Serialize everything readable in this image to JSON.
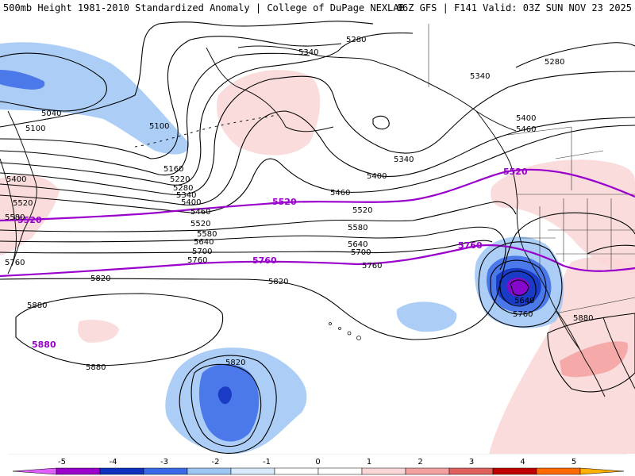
{
  "header": {
    "left_title": "500mb Height 1981-2010 Standardized Anomaly | College of DuPage NEXLAB",
    "right_title": "06Z GFS | F141 Valid: 03Z SUN NOV 23 2025"
  },
  "colors": {
    "contour": "#000000",
    "highlight_contour": "#9900cc",
    "border": "#333333",
    "coast": "#111111"
  },
  "colorbar": {
    "ticks": [
      "-5",
      "-4",
      "-3",
      "-2",
      "-1",
      "0",
      "1",
      "2",
      "3",
      "4",
      "5"
    ],
    "bins": [
      {
        "color": "#e060ff"
      },
      {
        "color": "#9900cc"
      },
      {
        "color": "#1030c0"
      },
      {
        "color": "#3a6ae8"
      },
      {
        "color": "#9ec6f5"
      },
      {
        "color": "#d7e9fb"
      },
      {
        "color": "#ffffff"
      },
      {
        "color": "#ffffff"
      },
      {
        "color": "#fad6d6"
      },
      {
        "color": "#f3a0a0"
      },
      {
        "color": "#e06060"
      },
      {
        "color": "#c00000"
      },
      {
        "color": "#ff6a00"
      },
      {
        "color": "#ffb000"
      }
    ]
  },
  "contours": [
    {
      "id": "5040",
      "label": "5040",
      "highlight": false
    },
    {
      "id": "5100",
      "label": "5100",
      "highlight": false
    },
    {
      "id": "5160",
      "label": "5160",
      "highlight": false
    },
    {
      "id": "5220",
      "label": "5220",
      "highlight": false
    },
    {
      "id": "5280",
      "label": "5280",
      "highlight": false
    },
    {
      "id": "5340",
      "label": "5340",
      "highlight": false
    },
    {
      "id": "5400",
      "label": "5400",
      "highlight": false
    },
    {
      "id": "5460",
      "label": "5460",
      "highlight": false
    },
    {
      "id": "5520",
      "label": "5520",
      "highlight": true
    },
    {
      "id": "5580",
      "label": "5580",
      "highlight": false
    },
    {
      "id": "5640",
      "label": "5640",
      "highlight": false
    },
    {
      "id": "5700",
      "label": "5700",
      "highlight": false
    },
    {
      "id": "5760",
      "label": "5760",
      "highlight": true
    },
    {
      "id": "5820",
      "label": "5820",
      "highlight": false
    },
    {
      "id": "5880",
      "label": "5880",
      "highlight": true
    }
  ],
  "anomaly_areas": [
    {
      "name": "aleutian-neg",
      "anomaly": -1
    },
    {
      "name": "aleutian-core",
      "anomaly": -2
    },
    {
      "name": "alaska-pos",
      "anomaly": 1
    },
    {
      "name": "california-low",
      "anomaly": -1
    },
    {
      "name": "california-low-core",
      "anomaly": -2
    },
    {
      "name": "california-low-inner",
      "anomaly": -3
    },
    {
      "name": "california-low-center",
      "anomaly": -4
    },
    {
      "name": "subtropical-neg",
      "anomaly": -1
    },
    {
      "name": "subtropical-core",
      "anomaly": -2
    },
    {
      "name": "subtropical-center",
      "anomaly": -3
    },
    {
      "name": "mexico-pos",
      "anomaly": 1
    },
    {
      "name": "mexico-pos-core",
      "anomaly": 2
    },
    {
      "name": "canada-pos",
      "anomaly": 1
    },
    {
      "name": "hawaii-pos",
      "anomaly": 1
    },
    {
      "name": "west-pos",
      "anomaly": 1
    }
  ]
}
